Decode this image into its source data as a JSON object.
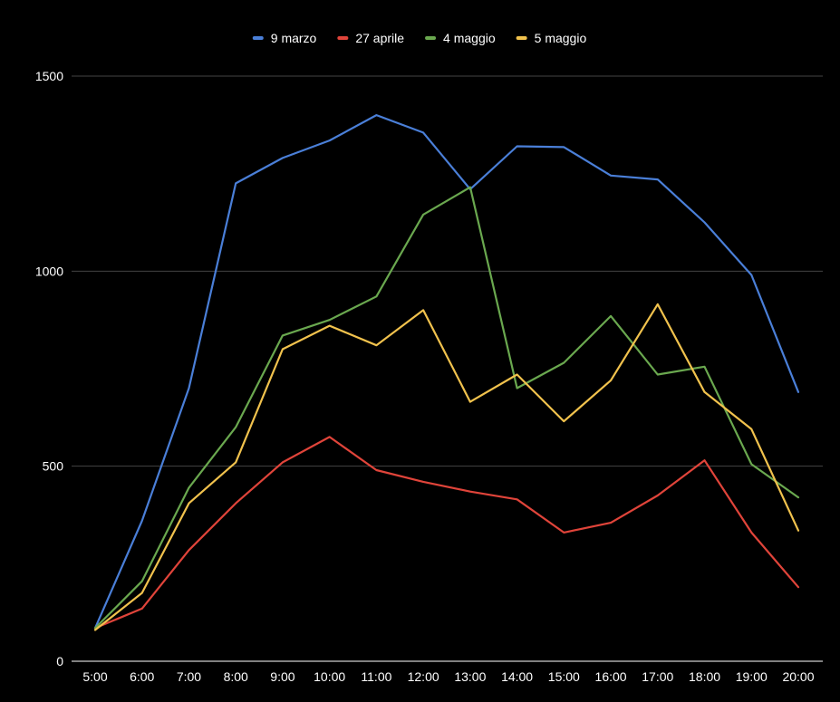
{
  "chart_data": {
    "type": "line",
    "title": "",
    "xlabel": "",
    "ylabel": "",
    "categories": [
      "5:00",
      "6:00",
      "7:00",
      "8:00",
      "9:00",
      "10:00",
      "11:00",
      "12:00",
      "13:00",
      "14:00",
      "15:00",
      "16:00",
      "17:00",
      "18:00",
      "19:00",
      "20:00"
    ],
    "ylim": [
      0,
      1500
    ],
    "yticks": [
      0,
      500,
      1000,
      1500
    ],
    "grid": true,
    "legend_position": "top-center",
    "background": "#000000",
    "series": [
      {
        "name": "9 marzo",
        "color": "#4a7fd8",
        "values": [
          85,
          360,
          700,
          1225,
          1290,
          1335,
          1400,
          1355,
          1210,
          1320,
          1318,
          1245,
          1235,
          1125,
          990,
          690
        ]
      },
      {
        "name": "27 aprile",
        "color": "#e0443a",
        "values": [
          85,
          135,
          285,
          405,
          510,
          575,
          490,
          460,
          435,
          415,
          330,
          355,
          425,
          515,
          330,
          190
        ]
      },
      {
        "name": "4 maggio",
        "color": "#6aa84f",
        "values": [
          85,
          205,
          445,
          600,
          835,
          875,
          935,
          1145,
          1215,
          700,
          765,
          885,
          735,
          755,
          505,
          420
        ]
      },
      {
        "name": "5 maggio",
        "color": "#f1c24d",
        "values": [
          80,
          175,
          405,
          510,
          800,
          860,
          810,
          900,
          665,
          735,
          615,
          720,
          915,
          690,
          595,
          335
        ]
      }
    ]
  }
}
